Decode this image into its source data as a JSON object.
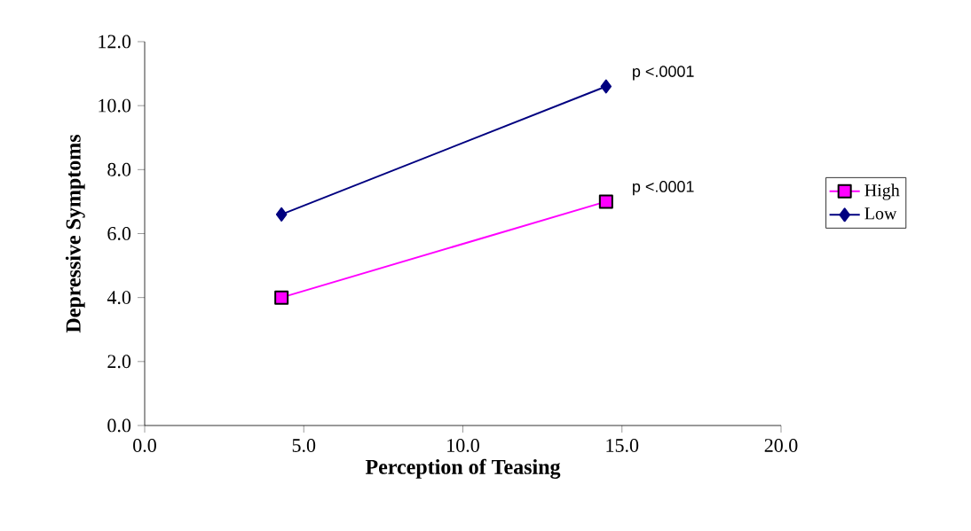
{
  "chart_data": {
    "type": "line",
    "xlabel": "Perception of Teasing",
    "ylabel": "Depressive Symptoms",
    "x": [
      4.3,
      14.5
    ],
    "series": [
      {
        "name": "High",
        "color": "#ff00ff",
        "values": [
          4.0,
          7.0
        ],
        "marker": "square"
      },
      {
        "name": "Low",
        "color": "#000080",
        "values": [
          6.6,
          10.6
        ],
        "marker": "diamond"
      }
    ],
    "xlim": [
      0,
      20
    ],
    "ylim": [
      0,
      12
    ],
    "xticks": [
      {
        "value": 0,
        "label": "0.0"
      },
      {
        "value": 5,
        "label": "5.0"
      },
      {
        "value": 10,
        "label": "10.0"
      },
      {
        "value": 15,
        "label": "15.0"
      },
      {
        "value": 20,
        "label": "20.0"
      }
    ],
    "yticks": [
      {
        "value": 0,
        "label": "0.0"
      },
      {
        "value": 2,
        "label": "2.0"
      },
      {
        "value": 4,
        "label": "4.0"
      },
      {
        "value": 6,
        "label": "6.0"
      },
      {
        "value": 8,
        "label": "8.0"
      },
      {
        "value": 10,
        "label": "10.0"
      },
      {
        "value": 12,
        "label": "12.0"
      }
    ],
    "annotations": [
      {
        "text": "p <.0001",
        "x": 14.5,
        "y": 10.6
      },
      {
        "text": "p <.0001",
        "x": 14.5,
        "y": 7.0
      }
    ],
    "grid": false,
    "legend": "right",
    "line_style": "solid"
  }
}
